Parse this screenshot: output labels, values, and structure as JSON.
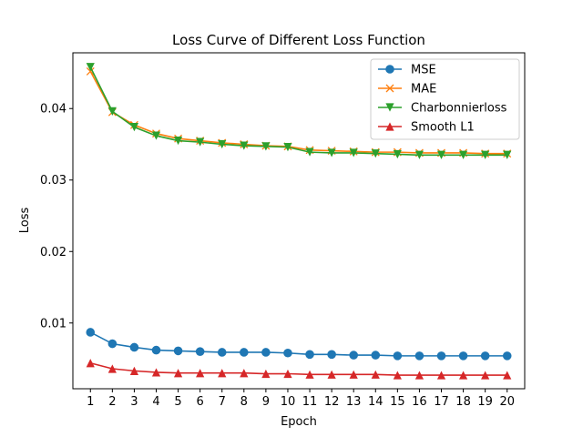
{
  "chart_data": {
    "type": "line",
    "title": "Loss Curve of Different Loss Function",
    "xlabel": "Epoch",
    "ylabel": "Loss",
    "x": [
      1,
      2,
      3,
      4,
      5,
      6,
      7,
      8,
      9,
      10,
      11,
      12,
      13,
      14,
      15,
      16,
      17,
      18,
      19,
      20
    ],
    "xlim": [
      0.2,
      20.8
    ],
    "ylim": [
      0.0008,
      0.0478
    ],
    "yticks": [
      0.01,
      0.02,
      0.03,
      0.04
    ],
    "ytick_labels": [
      "0.01",
      "0.02",
      "0.03",
      "0.04"
    ],
    "grid": false,
    "legend_position": "upper right",
    "series": [
      {
        "name": "MSE",
        "color": "#1f77b4",
        "marker": "circle",
        "values": [
          0.0087,
          0.0071,
          0.0066,
          0.0062,
          0.0061,
          0.006,
          0.0059,
          0.0059,
          0.0059,
          0.0058,
          0.0056,
          0.0056,
          0.0055,
          0.0055,
          0.0054,
          0.0054,
          0.0054,
          0.0054,
          0.0054,
          0.0054
        ]
      },
      {
        "name": "MAE",
        "color": "#ff7f0e",
        "marker": "x",
        "values": [
          0.0452,
          0.0395,
          0.0377,
          0.0365,
          0.0358,
          0.0355,
          0.0352,
          0.035,
          0.0348,
          0.0347,
          0.0342,
          0.0341,
          0.034,
          0.0339,
          0.0339,
          0.0338,
          0.0338,
          0.0338,
          0.0337,
          0.0337
        ]
      },
      {
        "name": "Charbonnierloss",
        "color": "#2ca02c",
        "marker": "triangle-down",
        "values": [
          0.0458,
          0.0396,
          0.0374,
          0.0362,
          0.0355,
          0.0353,
          0.035,
          0.0348,
          0.0347,
          0.0346,
          0.0339,
          0.0338,
          0.0338,
          0.0337,
          0.0336,
          0.0335,
          0.0335,
          0.0335,
          0.0335,
          0.0335
        ]
      },
      {
        "name": "Smooth L1",
        "color": "#d62728",
        "marker": "triangle-up",
        "values": [
          0.0044,
          0.0036,
          0.0033,
          0.0031,
          0.003,
          0.003,
          0.003,
          0.003,
          0.0029,
          0.0029,
          0.0028,
          0.0028,
          0.0028,
          0.0028,
          0.0027,
          0.0027,
          0.0027,
          0.0027,
          0.0027,
          0.0027
        ]
      }
    ]
  }
}
